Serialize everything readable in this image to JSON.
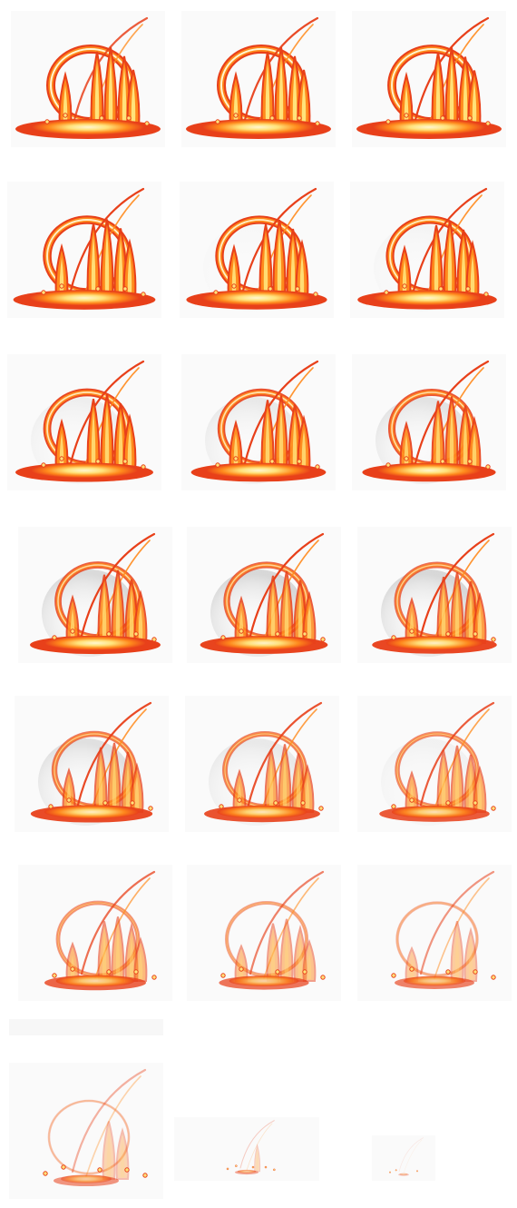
{
  "sheet": {
    "kind": "fire-burst sprite sheet",
    "columns": 3,
    "frame_count": 23,
    "colors": {
      "background": "#ffffff",
      "frame_backdrop": "#fafafa",
      "flame_outer": "#e8401a",
      "flame_mid": "#ff8a1c",
      "flame_core": "#ffe27a",
      "flame_hot": "#fff7d2",
      "smoke_dome": "#9a9a9a"
    }
  },
  "frames": [
    {
      "intensity": 1.0,
      "dome": 0.0,
      "arc": 0.85,
      "pool": 1.0
    },
    {
      "intensity": 1.0,
      "dome": 0.0,
      "arc": 0.95,
      "pool": 1.0
    },
    {
      "intensity": 0.98,
      "dome": 0.0,
      "arc": 1.0,
      "pool": 1.0
    },
    {
      "intensity": 0.95,
      "dome": 0.0,
      "arc": 1.0,
      "pool": 0.98
    },
    {
      "intensity": 0.93,
      "dome": 0.05,
      "arc": 1.0,
      "pool": 0.97
    },
    {
      "intensity": 0.9,
      "dome": 0.1,
      "arc": 1.0,
      "pool": 0.96
    },
    {
      "intensity": 0.86,
      "dome": 0.2,
      "arc": 1.0,
      "pool": 0.95
    },
    {
      "intensity": 0.82,
      "dome": 0.3,
      "arc": 1.0,
      "pool": 0.93
    },
    {
      "intensity": 0.78,
      "dome": 0.4,
      "arc": 1.0,
      "pool": 0.92
    },
    {
      "intensity": 0.74,
      "dome": 0.55,
      "arc": 1.0,
      "pool": 0.9
    },
    {
      "intensity": 0.7,
      "dome": 0.6,
      "arc": 1.0,
      "pool": 0.88
    },
    {
      "intensity": 0.66,
      "dome": 0.6,
      "arc": 1.0,
      "pool": 0.86
    },
    {
      "intensity": 0.6,
      "dome": 0.45,
      "arc": 0.95,
      "pool": 0.84
    },
    {
      "intensity": 0.55,
      "dome": 0.3,
      "arc": 0.9,
      "pool": 0.8
    },
    {
      "intensity": 0.5,
      "dome": 0.15,
      "arc": 0.85,
      "pool": 0.76
    },
    {
      "intensity": 0.42,
      "dome": 0.0,
      "arc": 0.75,
      "pool": 0.7
    },
    {
      "intensity": 0.34,
      "dome": 0.0,
      "arc": 0.65,
      "pool": 0.62
    },
    {
      "intensity": 0.26,
      "dome": 0.0,
      "arc": 0.55,
      "pool": 0.55
    },
    {
      "intensity": 0.18,
      "dome": 0.0,
      "arc": 0.4,
      "pool": 0.45
    },
    {
      "intensity": 0.12,
      "dome": 0.0,
      "arc": 0.25,
      "pool": 0.35
    },
    {
      "intensity": 0.08,
      "dome": 0.0,
      "arc": 0.1,
      "pool": 0.22
    },
    {
      "intensity": 0.05,
      "dome": 0.0,
      "arc": 0.0,
      "pool": 0.12
    },
    {
      "intensity": 0.03,
      "dome": 0.0,
      "arc": 0.0,
      "pool": 0.05
    }
  ]
}
